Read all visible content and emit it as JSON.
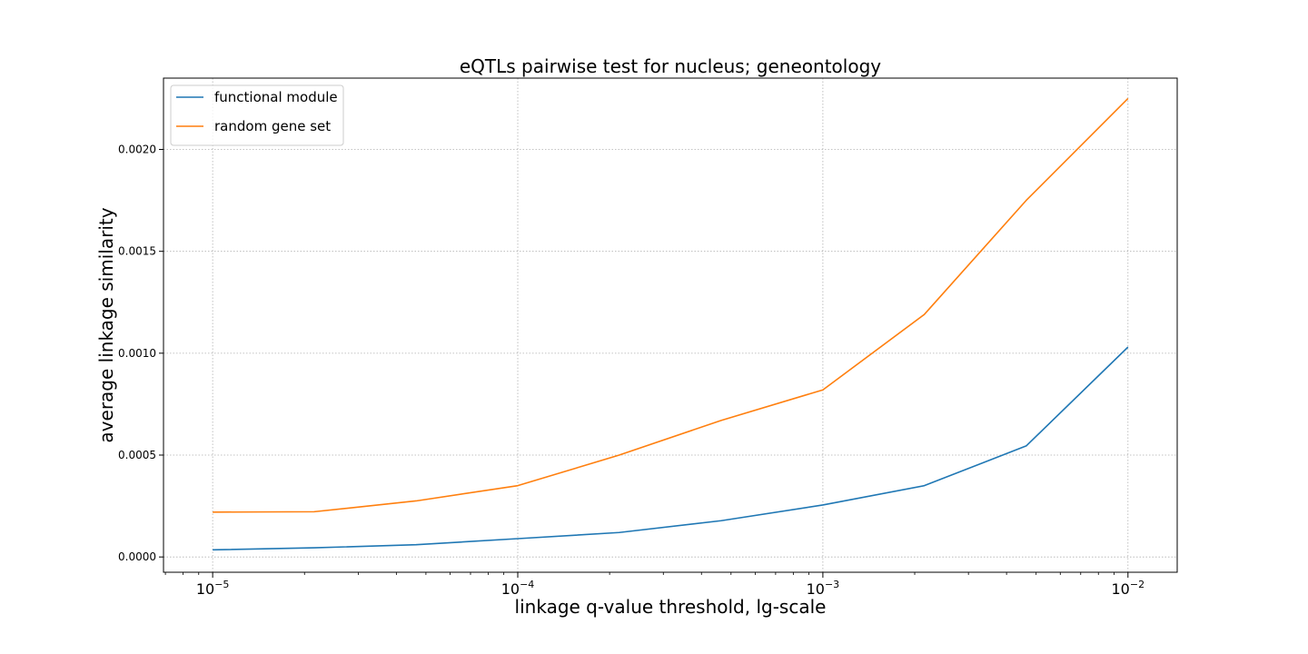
{
  "chart_data": {
    "type": "line",
    "title": "eQTLs pairwise test for nucleus; geneontology",
    "xlabel": "linkage q-value threshold, lg-scale",
    "ylabel": "average linkage similarity",
    "xscale": "log10",
    "xlim": [
      6.9e-06,
      0.0145
    ],
    "ylim": [
      -7.5e-05,
      0.00235
    ],
    "x": [
      1e-05,
      2.15e-05,
      4.64e-05,
      0.0001,
      0.000215,
      0.000464,
      0.001,
      0.00215,
      0.00464,
      0.01
    ],
    "x_ticks": [
      {
        "value": 1e-05,
        "base": "10",
        "exp": "−5"
      },
      {
        "value": 0.0001,
        "base": "10",
        "exp": "−4"
      },
      {
        "value": 0.001,
        "base": "10",
        "exp": "−3"
      },
      {
        "value": 0.01,
        "base": "10",
        "exp": "−2"
      }
    ],
    "y_ticks": [
      {
        "value": 0.0,
        "label": "0.0000"
      },
      {
        "value": 0.0005,
        "label": "0.0005"
      },
      {
        "value": 0.001,
        "label": "0.0010"
      },
      {
        "value": 0.0015,
        "label": "0.0015"
      },
      {
        "value": 0.002,
        "label": "0.0020"
      }
    ],
    "grid": true,
    "legend_position": "top-left",
    "series": [
      {
        "name": "functional module",
        "color": "#1f77b4",
        "values": [
          3.5e-05,
          4.5e-05,
          6e-05,
          9e-05,
          0.00012,
          0.000178,
          0.000255,
          0.00035,
          0.000545,
          0.00103
        ]
      },
      {
        "name": "random gene set",
        "color": "#ff7f0e",
        "values": [
          0.00022,
          0.000222,
          0.000275,
          0.00035,
          0.0005,
          0.00067,
          0.00082,
          0.00119,
          0.00175,
          0.00225
        ]
      }
    ]
  }
}
